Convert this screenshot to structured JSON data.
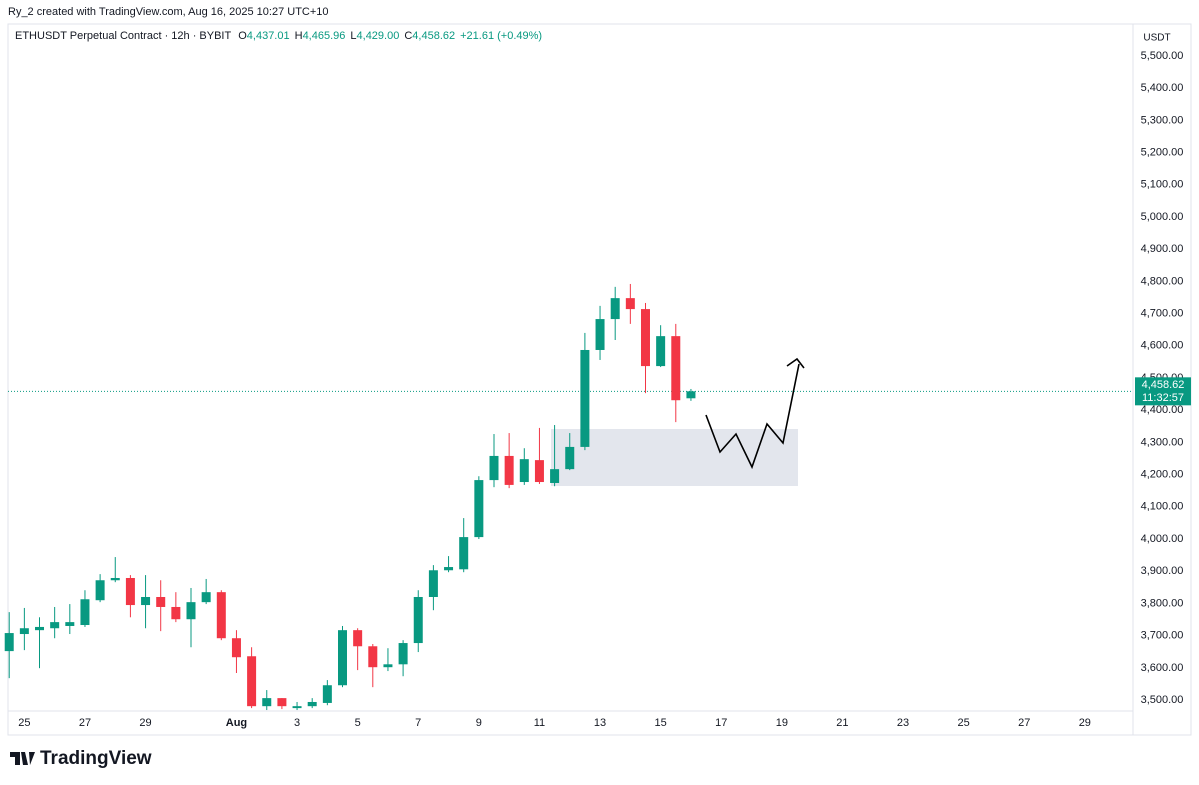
{
  "header": {
    "attribution": "Ry_2 created with TradingView.com, Aug 16, 2025 10:27 UTC+10",
    "symbol": "ETHUSDT Perpetual Contract · 12h · BYBIT",
    "ohlc": [
      {
        "key": "O",
        "value": "4,437.01"
      },
      {
        "key": "H",
        "value": "4,465.96"
      },
      {
        "key": "L",
        "value": "4,429.00"
      },
      {
        "key": "C",
        "value": "4,458.62"
      }
    ],
    "change": "+21.61 (+0.49%)"
  },
  "chart_data": {
    "type": "candlestick",
    "up_color": "#089981",
    "down_color": "#f23645",
    "open": [
      3652,
      3705,
      3717,
      3723,
      3730,
      3733,
      3810,
      3872,
      3879,
      3795,
      3820,
      3789,
      3751,
      3804,
      3835,
      3692,
      3636,
      3481,
      3506,
      3475,
      3481,
      3491,
      3546,
      3717,
      3667,
      3602,
      3611,
      3677,
      3820,
      3903,
      3906,
      4006,
      4183,
      4258,
      4177,
      4245,
      4174,
      4217,
      4286,
      4587,
      4683,
      4748,
      4714,
      4537,
      4630,
      4437.01
    ],
    "high": [
      3773,
      3786,
      3757,
      3789,
      3798,
      3841,
      3891,
      3944,
      3888,
      3888,
      3872,
      3835,
      3848,
      3876,
      3841,
      3717,
      3664,
      3531,
      3506,
      3494,
      3506,
      3562,
      3730,
      3723,
      3674,
      3661,
      3686,
      3841,
      3919,
      3947,
      4065,
      4195,
      4326,
      4329,
      4282,
      4345,
      4354,
      4329,
      4640,
      4724,
      4783,
      4792,
      4733,
      4664,
      4668,
      4465.96
    ],
    "low": [
      3568,
      3655,
      3599,
      3692,
      3705,
      3727,
      3804,
      3866,
      3757,
      3723,
      3714,
      3742,
      3664,
      3798,
      3686,
      3584,
      3475,
      3469,
      3472,
      3469,
      3475,
      3484,
      3540,
      3593,
      3540,
      3590,
      3574,
      3649,
      3779,
      3897,
      3897,
      4000,
      4161,
      4158,
      4168,
      4171,
      4164,
      4214,
      4276,
      4556,
      4618,
      4668,
      4453,
      4534,
      4363,
      4429.0
    ],
    "close": [
      3708,
      3723,
      3727,
      3742,
      3742,
      3813,
      3872,
      3879,
      3795,
      3820,
      3789,
      3751,
      3804,
      3835,
      3692,
      3633,
      3481,
      3506,
      3481,
      3481,
      3494,
      3546,
      3717,
      3667,
      3602,
      3611,
      3677,
      3820,
      3903,
      3913,
      4006,
      4183,
      4258,
      4168,
      4248,
      4177,
      4217,
      4286,
      4587,
      4683,
      4748,
      4714,
      4537,
      4630,
      4431,
      4458.62
    ],
    "xlim": [
      -0.08,
      74.18
    ],
    "xticks": [
      {
        "value": 1,
        "label": "25"
      },
      {
        "value": 5,
        "label": "27"
      },
      {
        "value": 9,
        "label": "29"
      },
      {
        "value": 15,
        "label": "Aug"
      },
      {
        "value": 19,
        "label": "3"
      },
      {
        "value": 23,
        "label": "5"
      },
      {
        "value": 27,
        "label": "7"
      },
      {
        "value": 31,
        "label": "9"
      },
      {
        "value": 35,
        "label": "11"
      },
      {
        "value": 39,
        "label": "13"
      },
      {
        "value": 43,
        "label": "15"
      },
      {
        "value": 47,
        "label": "17"
      },
      {
        "value": 51,
        "label": "19"
      },
      {
        "value": 55,
        "label": "21"
      },
      {
        "value": 59,
        "label": "23"
      },
      {
        "value": 63,
        "label": "25"
      },
      {
        "value": 67,
        "label": "27"
      },
      {
        "value": 71,
        "label": "29"
      }
    ],
    "ylim": [
      3466,
      5593
    ],
    "yticks": [
      {
        "value": 3500,
        "label": "3,500.00"
      },
      {
        "value": 3600,
        "label": "3,600.00"
      },
      {
        "value": 3700,
        "label": "3,700.00"
      },
      {
        "value": 3800,
        "label": "3,800.00"
      },
      {
        "value": 3900,
        "label": "3,900.00"
      },
      {
        "value": 4000,
        "label": "4,000.00"
      },
      {
        "value": 4100,
        "label": "4,100.00"
      },
      {
        "value": 4200,
        "label": "4,200.00"
      },
      {
        "value": 4300,
        "label": "4,300.00"
      },
      {
        "value": 4400,
        "label": "4,400.00"
      },
      {
        "value": 4500,
        "label": "4,500.00"
      },
      {
        "value": 4600,
        "label": "4,600.00"
      },
      {
        "value": 4700,
        "label": "4,700.00"
      },
      {
        "value": 4800,
        "label": "4,800.00"
      },
      {
        "value": 4900,
        "label": "4,900.00"
      },
      {
        "value": 5000,
        "label": "5,000.00"
      },
      {
        "value": 5100,
        "label": "5,100.00"
      },
      {
        "value": 5200,
        "label": "5,200.00"
      },
      {
        "value": 5300,
        "label": "5,300.00"
      },
      {
        "value": 5400,
        "label": "5,400.00"
      },
      {
        "value": 5500,
        "label": "5,500.00"
      }
    ],
    "y_unit": "USDT",
    "grid": false,
    "last_price": {
      "value": 4458.62,
      "label": "4,458.62"
    },
    "countdown": "11:32:57"
  },
  "footer": {
    "brand": "TradingView"
  }
}
